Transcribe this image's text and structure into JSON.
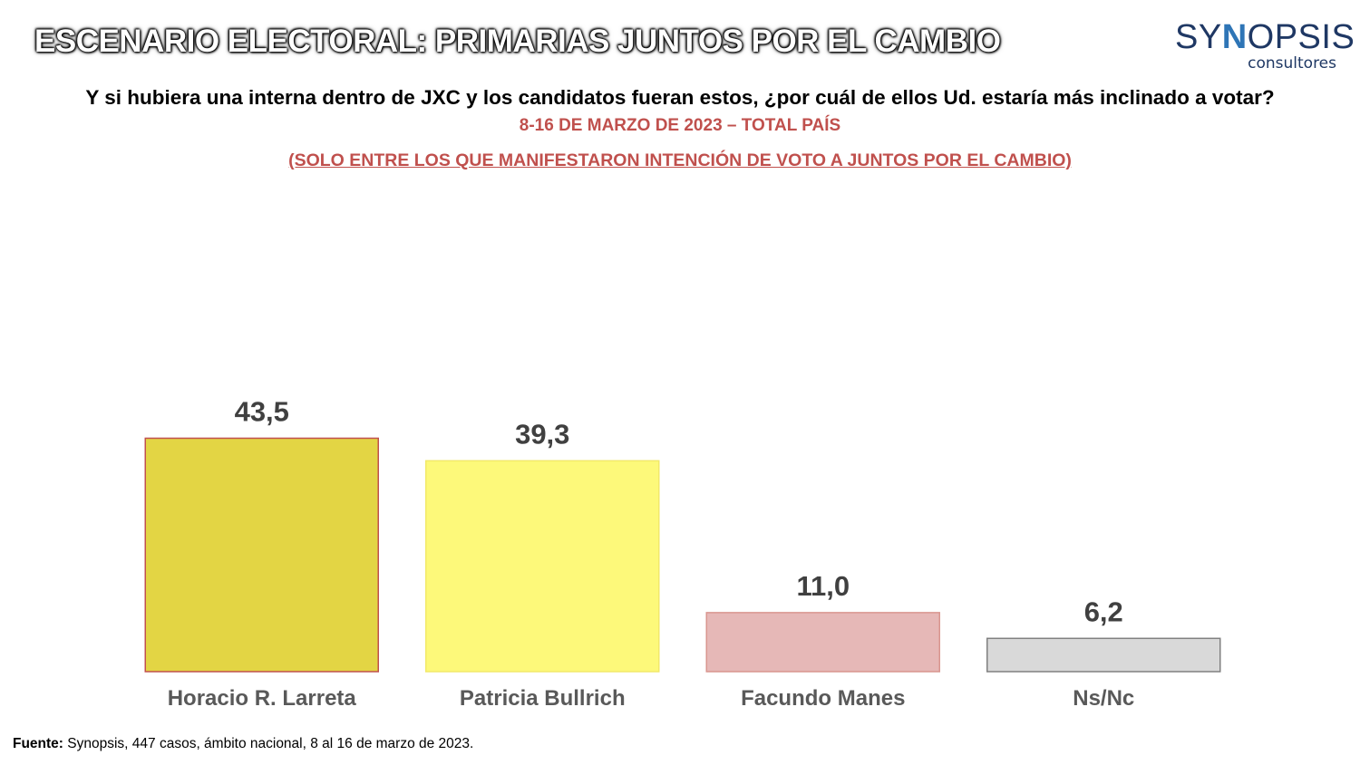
{
  "header": {
    "banner": "ESCENARIO ELECTORAL: PRIMARIAS JUNTOS POR EL CAMBIO",
    "logo_main_prefix": "SY",
    "logo_main_mark": "N",
    "logo_main_suffix": "OPSIS",
    "logo_sub": "consultores"
  },
  "question": "Y si hubiera una interna dentro de JXC y los candidatos fueran estos, ¿por cuál de ellos Ud. estaría más inclinado a votar?",
  "dateline": "8-16 DE MARZO DE 2023 – TOTAL PAÍS",
  "subset_note": "(SOLO ENTRE LOS QUE MANIFESTARON INTENCIÓN DE VOTO A JUNTOS POR EL CAMBIO)",
  "chart_data": {
    "type": "bar",
    "categories": [
      "Horacio R. Larreta",
      "Patricia Bullrich",
      "Facundo Manes",
      "Ns/Nc"
    ],
    "values": [
      43.5,
      39.3,
      11.0,
      6.2
    ],
    "value_labels": [
      "43,5",
      "39,3",
      "11,0",
      "6,2"
    ],
    "colors": [
      "#e3d544",
      "#fdf97a",
      "#e6b8b7",
      "#d9d9d9"
    ],
    "border_colors": [
      "#c0504d",
      "#f2e96a",
      "#d9968f",
      "#808080"
    ],
    "ylim": [
      0,
      45
    ],
    "grid": false,
    "legend": "none",
    "title": "",
    "xlabel": "",
    "ylabel": ""
  },
  "footer": {
    "label": "Fuente:",
    "text": " Synopsis, 447 casos, ámbito nacional, 8 al 16 de marzo de 2023."
  }
}
